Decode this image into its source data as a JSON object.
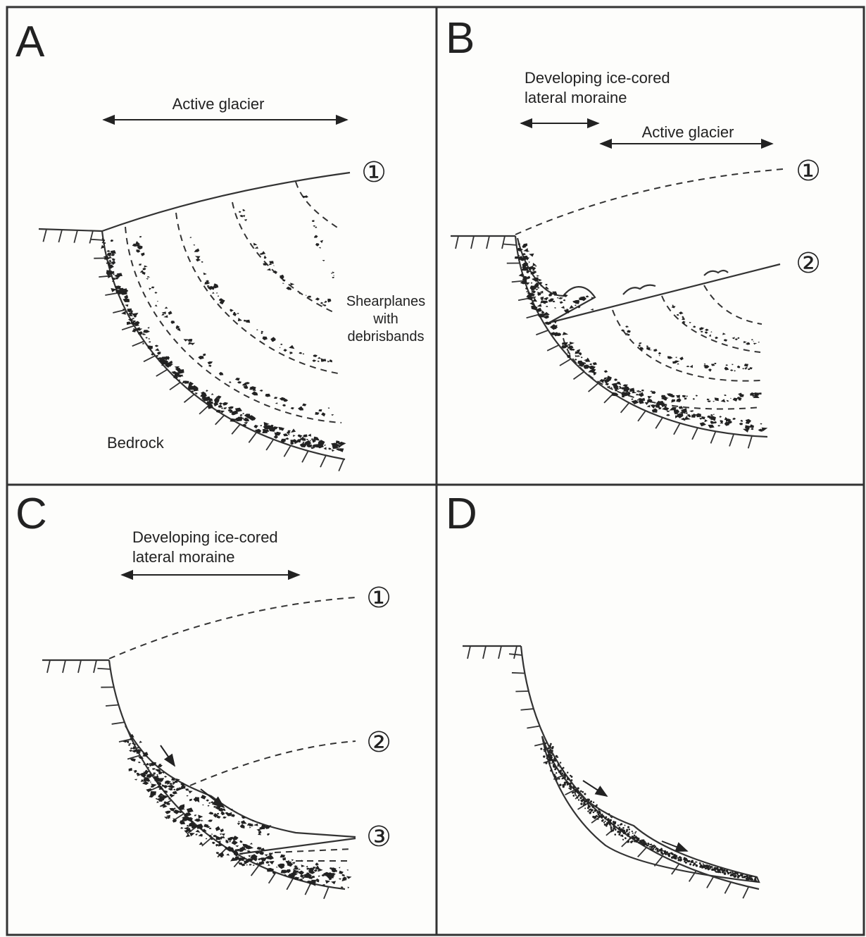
{
  "panels": [
    {
      "label": "A",
      "heading": "Active glacier",
      "markers": [
        "①"
      ],
      "note": [
        "Shearplanes",
        "with",
        "debrisbands"
      ],
      "ground": "Bedrock"
    },
    {
      "label": "B",
      "heading": [
        "Developing ice-cored",
        "lateral moraine"
      ],
      "subheading": "Active glacier",
      "markers": [
        "①",
        "②"
      ]
    },
    {
      "label": "C",
      "heading": [
        "Developing ice-cored",
        "lateral moraine"
      ],
      "markers": [
        "①",
        "②",
        "③"
      ]
    },
    {
      "label": "D"
    }
  ]
}
